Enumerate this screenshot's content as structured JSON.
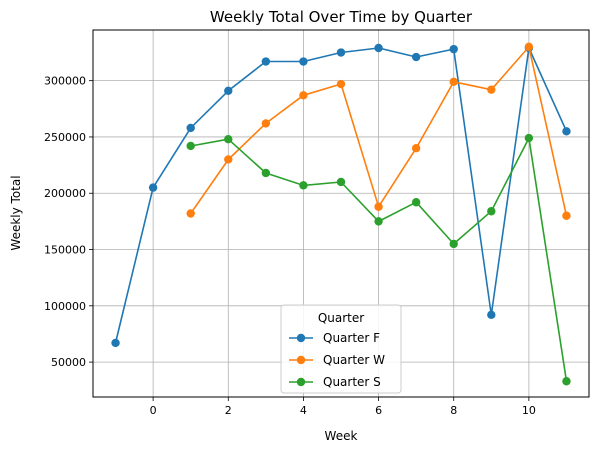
{
  "chart_data": {
    "type": "line",
    "title": "Weekly Total Over Time by Quarter",
    "xlabel": "Week",
    "ylabel": "Weekly Total",
    "xlim": [
      -1.6,
      11.6
    ],
    "ylim": [
      19000,
      345000
    ],
    "x_ticks": [
      0,
      2,
      4,
      6,
      8,
      10
    ],
    "x_tick_labels": [
      "0",
      "2",
      "4",
      "6",
      "8",
      "10"
    ],
    "y_ticks": [
      50000,
      100000,
      150000,
      200000,
      250000,
      300000
    ],
    "y_tick_labels": [
      "50000",
      "100000",
      "150000",
      "200000",
      "250000",
      "300000"
    ],
    "grid": true,
    "legend": {
      "title": "Quarter",
      "placement": "lower-center"
    },
    "series": [
      {
        "name": "Quarter F",
        "color": "#1f77b4",
        "x": [
          -1,
          0,
          1,
          2,
          3,
          4,
          5,
          6,
          7,
          8,
          9,
          10,
          11
        ],
        "values": [
          67000,
          205000,
          258000,
          291000,
          317000,
          317000,
          325000,
          329000,
          321000,
          328000,
          92000,
          329000,
          255000
        ]
      },
      {
        "name": "Quarter W",
        "color": "#ff7f0e",
        "x": [
          1,
          2,
          3,
          4,
          5,
          6,
          7,
          8,
          9,
          10,
          11
        ],
        "values": [
          182000,
          230000,
          262000,
          287000,
          297000,
          188000,
          240000,
          299000,
          292000,
          330000,
          180000
        ]
      },
      {
        "name": "Quarter S",
        "color": "#2ca02c",
        "x": [
          1,
          2,
          3,
          4,
          5,
          6,
          7,
          8,
          9,
          10,
          11
        ],
        "values": [
          242000,
          248000,
          218000,
          207000,
          210000,
          175000,
          192000,
          155000,
          184000,
          249000,
          33000
        ]
      }
    ]
  }
}
